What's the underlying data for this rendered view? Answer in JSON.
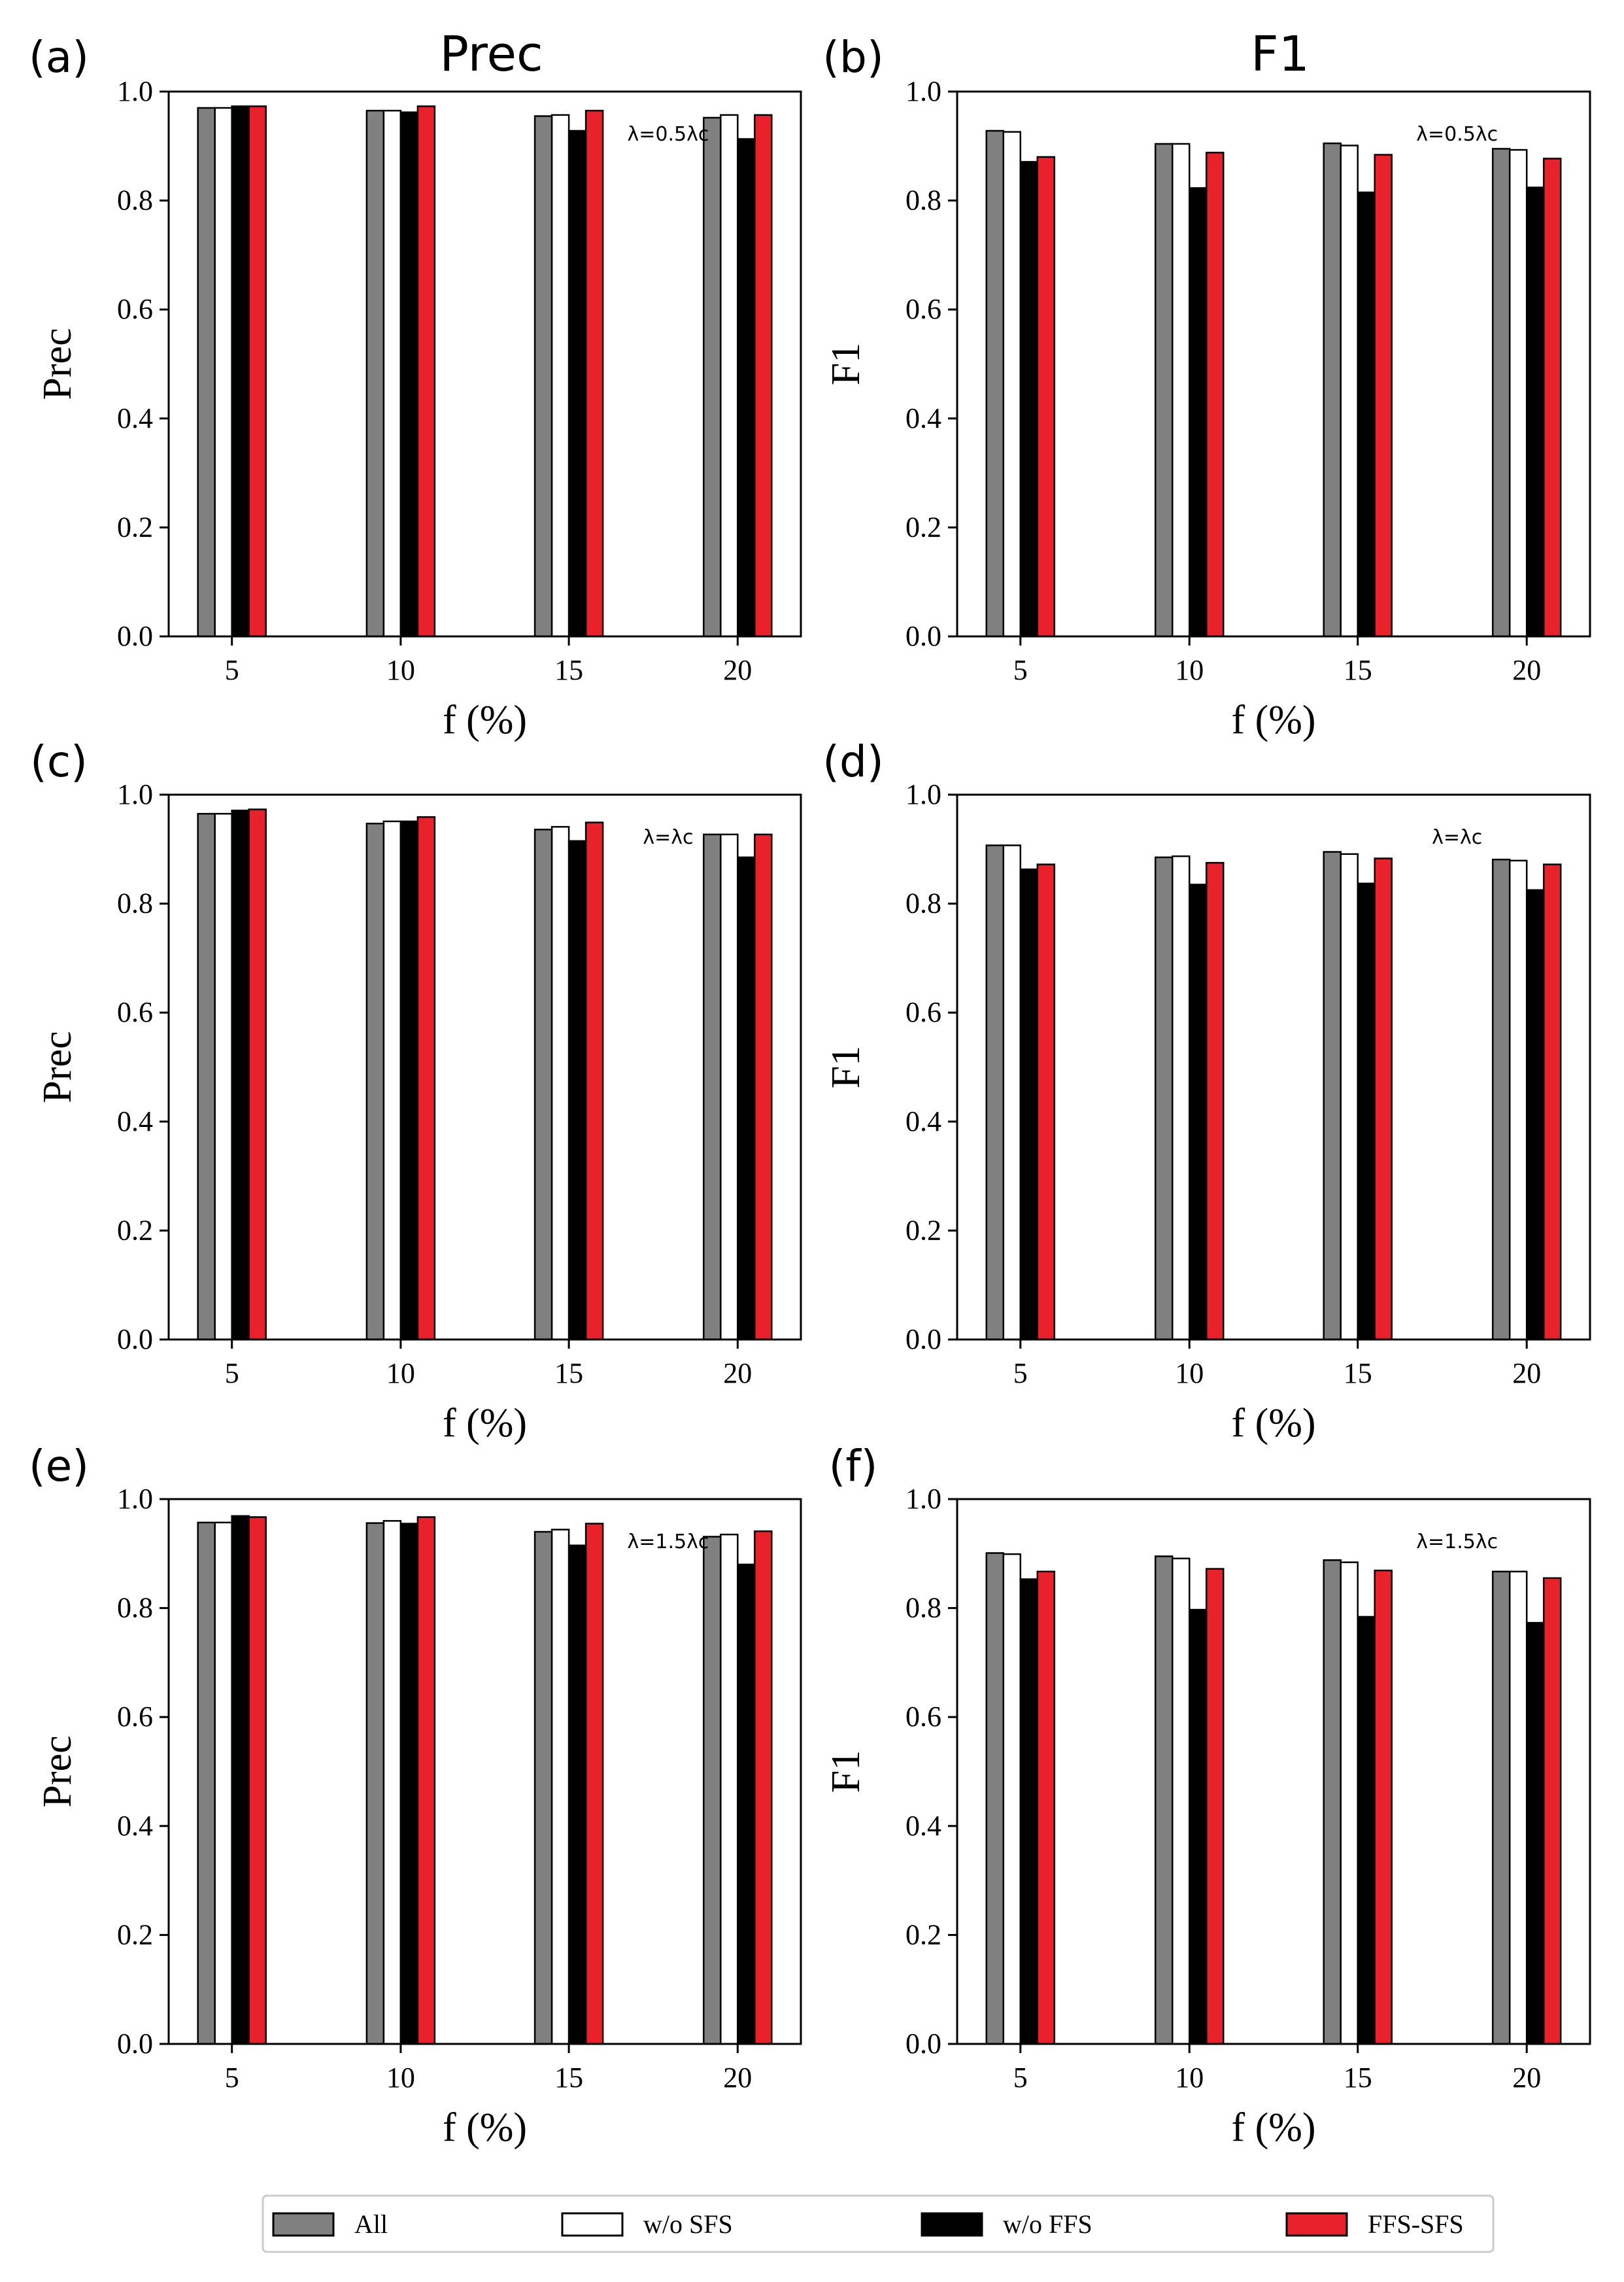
{
  "legend": {
    "entries": [
      "All",
      "w/o SFS",
      "w/o FFS",
      "FFS-SFS"
    ],
    "colors": [
      "#808080",
      "#ffffff",
      "#000000",
      "#e8212b"
    ]
  },
  "chart_data": [
    {
      "panel": "(a)",
      "type": "bar",
      "column_title": "Prec",
      "categories": [
        "5",
        "10",
        "15",
        "20"
      ],
      "xlabel": "f (%)",
      "ylabel": "Prec",
      "ylim": [
        0,
        1.0
      ],
      "yticks": [
        "0.0",
        "0.2",
        "0.4",
        "0.6",
        "0.8",
        "1.0"
      ],
      "annotation": "λ=0.5λc",
      "series": [
        {
          "name": "All",
          "values": [
            0.97,
            0.965,
            0.955,
            0.952
          ]
        },
        {
          "name": "w/o SFS",
          "values": [
            0.97,
            0.965,
            0.957,
            0.957
          ]
        },
        {
          "name": "w/o FFS",
          "values": [
            0.973,
            0.962,
            0.928,
            0.913
          ]
        },
        {
          "name": "FFS-SFS",
          "values": [
            0.973,
            0.973,
            0.965,
            0.957
          ]
        }
      ]
    },
    {
      "panel": "(b)",
      "type": "bar",
      "column_title": "F1",
      "categories": [
        "5",
        "10",
        "15",
        "20"
      ],
      "xlabel": "f (%)",
      "ylabel": "F1",
      "ylim": [
        0,
        1.0
      ],
      "yticks": [
        "0.0",
        "0.2",
        "0.4",
        "0.6",
        "0.8",
        "1.0"
      ],
      "annotation": "λ=0.5λc",
      "series": [
        {
          "name": "All",
          "values": [
            0.928,
            0.904,
            0.905,
            0.895
          ]
        },
        {
          "name": "w/o SFS",
          "values": [
            0.926,
            0.904,
            0.901,
            0.893
          ]
        },
        {
          "name": "w/o FFS",
          "values": [
            0.871,
            0.823,
            0.815,
            0.824
          ]
        },
        {
          "name": "FFS-SFS",
          "values": [
            0.88,
            0.888,
            0.884,
            0.877
          ]
        }
      ]
    },
    {
      "panel": "(c)",
      "type": "bar",
      "categories": [
        "5",
        "10",
        "15",
        "20"
      ],
      "xlabel": "f (%)",
      "ylabel": "Prec",
      "ylim": [
        0,
        1.0
      ],
      "yticks": [
        "0.0",
        "0.2",
        "0.4",
        "0.6",
        "0.8",
        "1.0"
      ],
      "annotation": "λ=λc",
      "series": [
        {
          "name": "All",
          "values": [
            0.965,
            0.947,
            0.936,
            0.927
          ]
        },
        {
          "name": "w/o SFS",
          "values": [
            0.965,
            0.951,
            0.941,
            0.927
          ]
        },
        {
          "name": "w/o FFS",
          "values": [
            0.971,
            0.951,
            0.915,
            0.885
          ]
        },
        {
          "name": "FFS-SFS",
          "values": [
            0.973,
            0.959,
            0.949,
            0.927
          ]
        }
      ]
    },
    {
      "panel": "(d)",
      "type": "bar",
      "categories": [
        "5",
        "10",
        "15",
        "20"
      ],
      "xlabel": "f (%)",
      "ylabel": "F1",
      "ylim": [
        0,
        1.0
      ],
      "yticks": [
        "0.0",
        "0.2",
        "0.4",
        "0.6",
        "0.8",
        "1.0"
      ],
      "annotation": "λ=λc",
      "series": [
        {
          "name": "All",
          "values": [
            0.907,
            0.885,
            0.895,
            0.881
          ]
        },
        {
          "name": "w/o SFS",
          "values": [
            0.907,
            0.887,
            0.891,
            0.879
          ]
        },
        {
          "name": "w/o FFS",
          "values": [
            0.863,
            0.835,
            0.837,
            0.825
          ]
        },
        {
          "name": "FFS-SFS",
          "values": [
            0.872,
            0.875,
            0.883,
            0.872
          ]
        }
      ]
    },
    {
      "panel": "(e)",
      "type": "bar",
      "categories": [
        "5",
        "10",
        "15",
        "20"
      ],
      "xlabel": "f (%)",
      "ylabel": "Prec",
      "ylim": [
        0,
        1.0
      ],
      "yticks": [
        "0.0",
        "0.2",
        "0.4",
        "0.6",
        "0.8",
        "1.0"
      ],
      "annotation": "λ=1.5λc",
      "series": [
        {
          "name": "All",
          "values": [
            0.957,
            0.956,
            0.94,
            0.931
          ]
        },
        {
          "name": "w/o SFS",
          "values": [
            0.957,
            0.96,
            0.944,
            0.935
          ]
        },
        {
          "name": "w/o FFS",
          "values": [
            0.969,
            0.955,
            0.915,
            0.88
          ]
        },
        {
          "name": "FFS-SFS",
          "values": [
            0.967,
            0.967,
            0.955,
            0.941
          ]
        }
      ]
    },
    {
      "panel": "(f)",
      "type": "bar",
      "categories": [
        "5",
        "10",
        "15",
        "20"
      ],
      "xlabel": "f (%)",
      "ylabel": "F1",
      "ylim": [
        0,
        1.0
      ],
      "yticks": [
        "0.0",
        "0.2",
        "0.4",
        "0.6",
        "0.8",
        "1.0"
      ],
      "annotation": "λ=1.5λc",
      "series": [
        {
          "name": "All",
          "values": [
            0.901,
            0.895,
            0.888,
            0.867
          ]
        },
        {
          "name": "w/o SFS",
          "values": [
            0.899,
            0.891,
            0.884,
            0.867
          ]
        },
        {
          "name": "w/o FFS",
          "values": [
            0.853,
            0.797,
            0.784,
            0.773
          ]
        },
        {
          "name": "FFS-SFS",
          "values": [
            0.867,
            0.872,
            0.869,
            0.855
          ]
        }
      ]
    }
  ]
}
